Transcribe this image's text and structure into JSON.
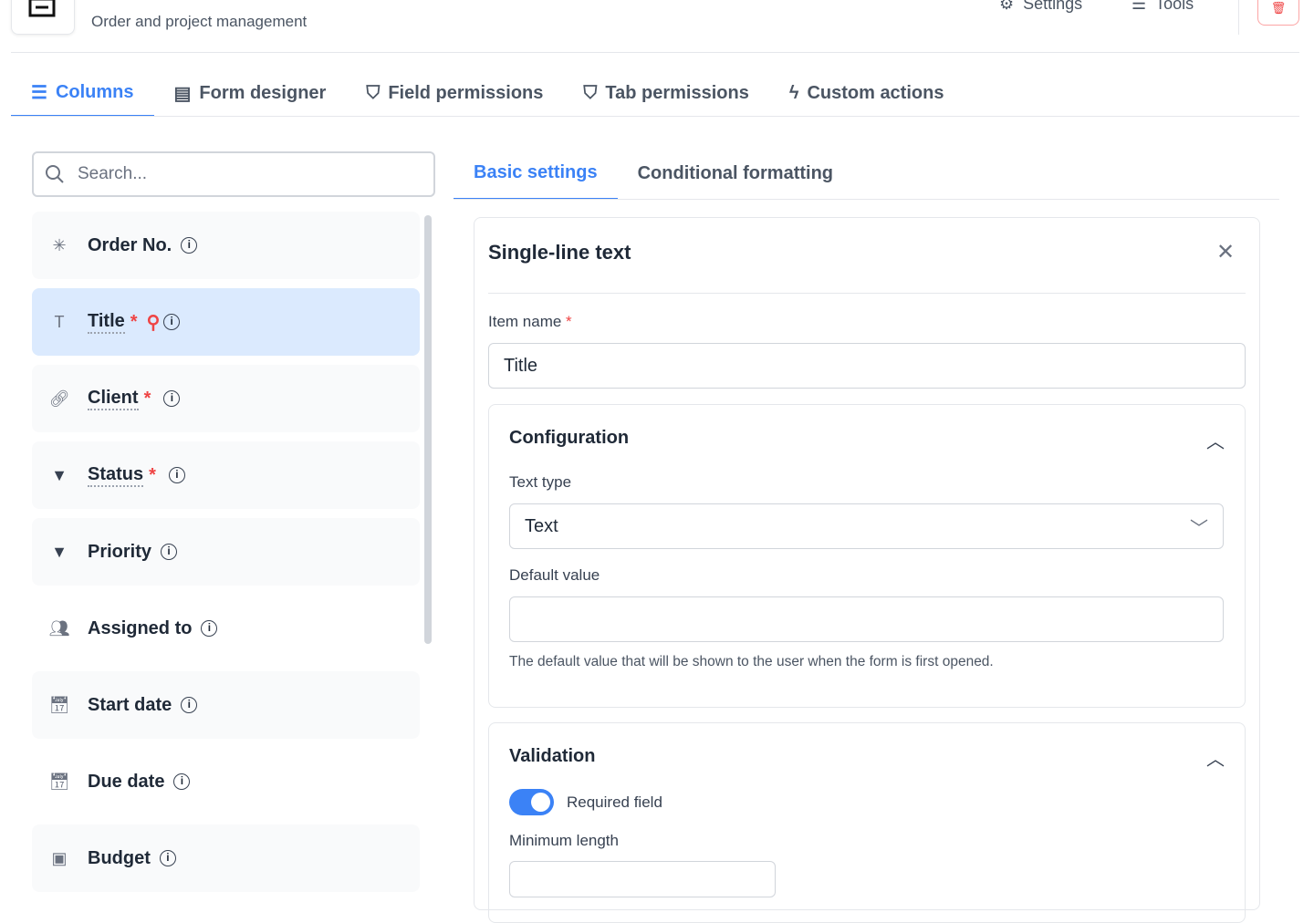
{
  "header": {
    "subtitle": "Order and project management",
    "settings": "Settings",
    "tools": "Tools"
  },
  "tabs": [
    {
      "label": "Columns",
      "icon": "list-icon"
    },
    {
      "label": "Form designer",
      "icon": "form-icon"
    },
    {
      "label": "Field permissions",
      "icon": "shield-icon"
    },
    {
      "label": "Tab permissions",
      "icon": "shield-icon"
    },
    {
      "label": "Custom actions",
      "icon": "bolt-icon"
    }
  ],
  "search": {
    "placeholder": "Search..."
  },
  "columns": [
    {
      "label": "Order No.",
      "icon": "asterisk-icon",
      "required": false
    },
    {
      "label": "Title",
      "icon": "text-icon",
      "required": true,
      "key": true,
      "selected": true
    },
    {
      "label": "Client",
      "icon": "link-icon",
      "required": true
    },
    {
      "label": "Status",
      "icon": "dropdown-icon",
      "required": true
    },
    {
      "label": "Priority",
      "icon": "dropdown-icon",
      "required": false
    },
    {
      "label": "Assigned to",
      "icon": "users-icon",
      "required": false
    },
    {
      "label": "Start date",
      "icon": "calendar-icon",
      "required": false
    },
    {
      "label": "Due date",
      "icon": "calendar-icon",
      "required": false
    },
    {
      "label": "Budget",
      "icon": "money-icon",
      "required": false
    }
  ],
  "panel": {
    "tabs": [
      "Basic settings",
      "Conditional formatting"
    ],
    "title": "Single-line text",
    "item_name_label": "Item name",
    "item_name_value": "Title",
    "configuration": {
      "title": "Configuration",
      "text_type_label": "Text type",
      "text_type_value": "Text",
      "default_label": "Default value",
      "default_value": "",
      "default_help": "The default value that will be shown to the user when the form is first opened."
    },
    "validation": {
      "title": "Validation",
      "required_label": "Required field",
      "required_on": true,
      "min_length_label": "Minimum length"
    }
  },
  "colors": {
    "accent": "#3b82f6",
    "danger": "#ef4444",
    "selected_bg": "#dbeafe"
  }
}
